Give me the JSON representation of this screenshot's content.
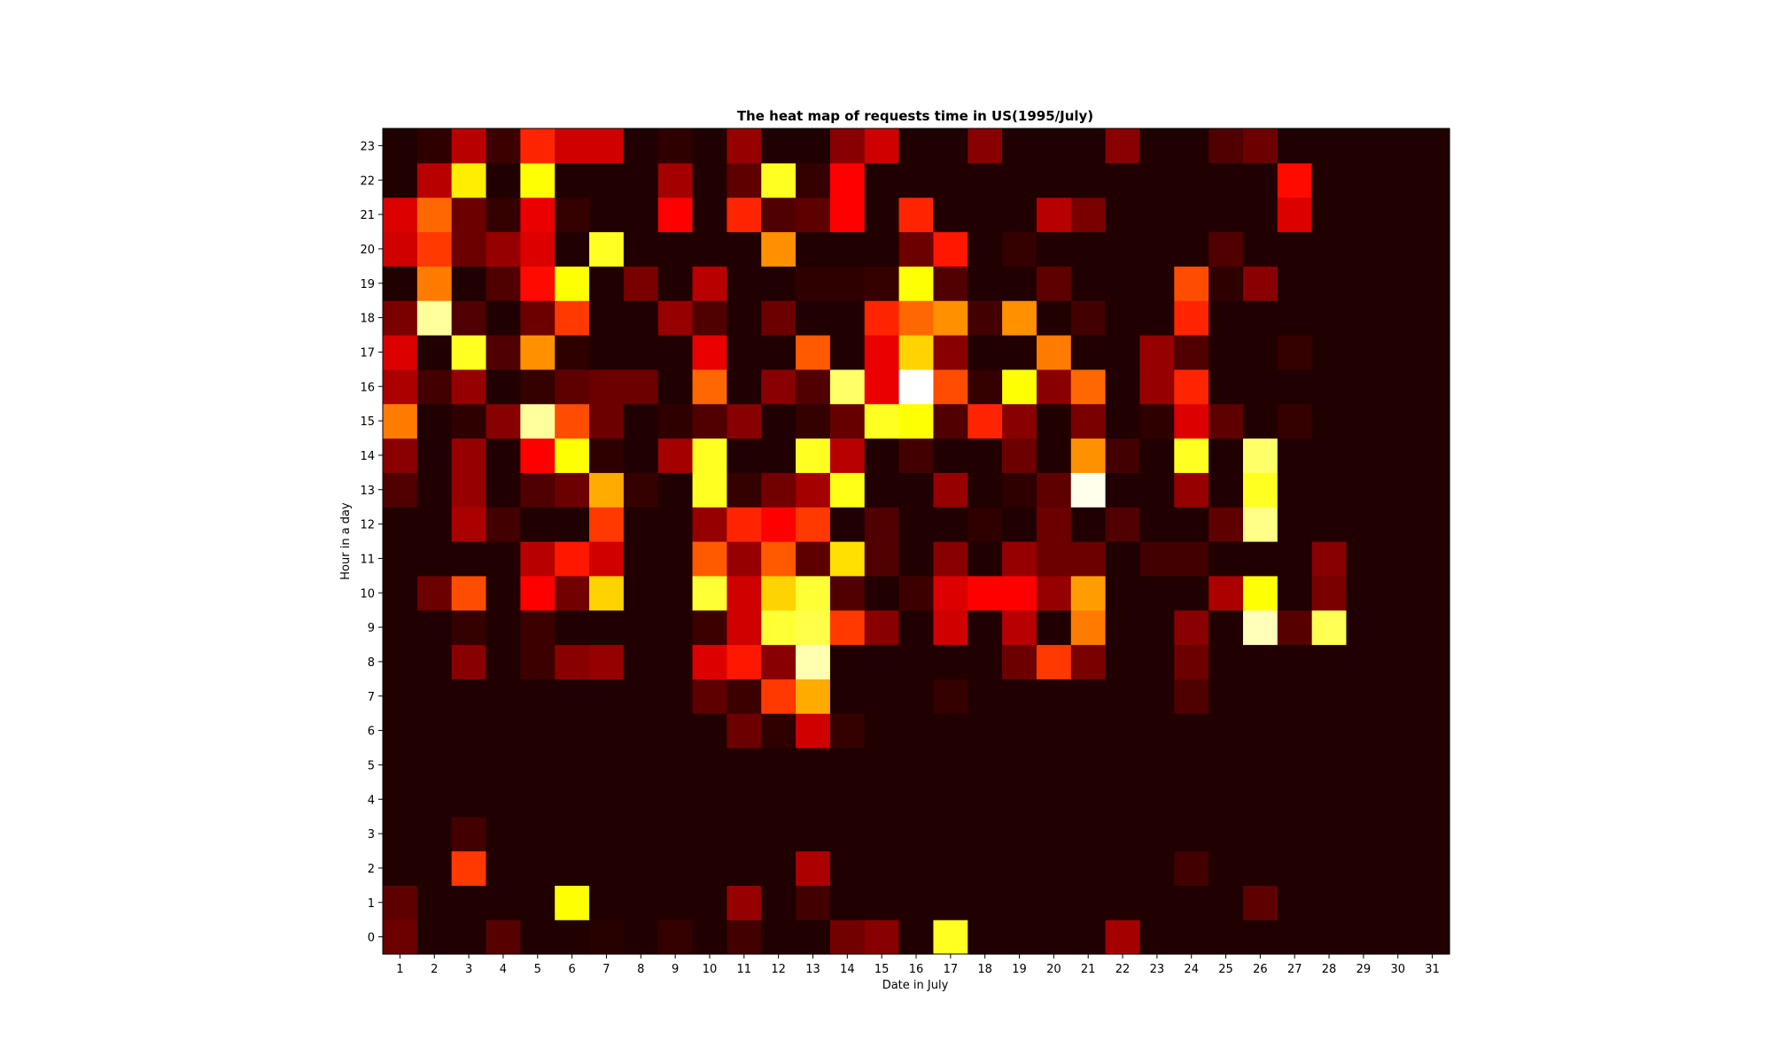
{
  "chart_data": {
    "type": "heatmap",
    "title": "The heat map of requests time in US(1995/July)",
    "xlabel": "Date in July",
    "ylabel": "Hour in a day",
    "x": [
      "1",
      "2",
      "3",
      "4",
      "5",
      "6",
      "7",
      "8",
      "9",
      "10",
      "11",
      "12",
      "13",
      "14",
      "15",
      "16",
      "17",
      "18",
      "19",
      "20",
      "21",
      "22",
      "23",
      "24",
      "25",
      "26",
      "27",
      "28",
      "29",
      "30",
      "31"
    ],
    "y": [
      "0",
      "1",
      "2",
      "3",
      "4",
      "5",
      "6",
      "7",
      "8",
      "9",
      "10",
      "11",
      "12",
      "13",
      "14",
      "15",
      "16",
      "17",
      "18",
      "19",
      "20",
      "21",
      "22",
      "23"
    ],
    "colormap": "hot",
    "value_range": [
      0,
      1
    ],
    "grid": false,
    "legend": "none",
    "values": [
      [
        0.14,
        0.03,
        0.03,
        0.11,
        0.03,
        0.03,
        0.04,
        0.03,
        0.06,
        0.03,
        0.08,
        0.03,
        0.03,
        0.15,
        0.18,
        0.03,
        0.78,
        0.03,
        0.03,
        0.03,
        0.03,
        0.22,
        0.03,
        0.03,
        0.03,
        0.03,
        0.03,
        0.03,
        0.03,
        0.03,
        0.03
      ],
      [
        0.12,
        0.03,
        0.03,
        0.03,
        0.03,
        0.75,
        0.03,
        0.03,
        0.03,
        0.03,
        0.2,
        0.03,
        0.08,
        0.03,
        0.03,
        0.03,
        0.03,
        0.03,
        0.03,
        0.03,
        0.03,
        0.03,
        0.03,
        0.03,
        0.03,
        0.12,
        0.03,
        0.03,
        0.03,
        0.03,
        0.03
      ],
      [
        0.03,
        0.03,
        0.45,
        0.03,
        0.03,
        0.03,
        0.03,
        0.03,
        0.03,
        0.03,
        0.03,
        0.03,
        0.23,
        0.03,
        0.03,
        0.03,
        0.03,
        0.03,
        0.03,
        0.03,
        0.03,
        0.03,
        0.03,
        0.08,
        0.03,
        0.03,
        0.03,
        0.03,
        0.03,
        0.03,
        0.03
      ],
      [
        0.03,
        0.03,
        0.08,
        0.03,
        0.03,
        0.03,
        0.03,
        0.03,
        0.03,
        0.03,
        0.03,
        0.03,
        0.03,
        0.03,
        0.03,
        0.03,
        0.03,
        0.03,
        0.03,
        0.03,
        0.03,
        0.03,
        0.03,
        0.03,
        0.03,
        0.03,
        0.03,
        0.03,
        0.03,
        0.03,
        0.03
      ],
      [
        0.03,
        0.03,
        0.03,
        0.03,
        0.03,
        0.03,
        0.03,
        0.03,
        0.03,
        0.03,
        0.03,
        0.03,
        0.03,
        0.03,
        0.03,
        0.03,
        0.03,
        0.03,
        0.03,
        0.03,
        0.03,
        0.03,
        0.03,
        0.03,
        0.03,
        0.03,
        0.03,
        0.03,
        0.03,
        0.03,
        0.03
      ],
      [
        0.03,
        0.03,
        0.03,
        0.03,
        0.03,
        0.03,
        0.03,
        0.03,
        0.03,
        0.03,
        0.03,
        0.03,
        0.03,
        0.03,
        0.03,
        0.03,
        0.03,
        0.03,
        0.03,
        0.03,
        0.03,
        0.03,
        0.03,
        0.03,
        0.03,
        0.03,
        0.03,
        0.03,
        0.03,
        0.03,
        0.03
      ],
      [
        0.03,
        0.03,
        0.03,
        0.03,
        0.03,
        0.03,
        0.03,
        0.03,
        0.03,
        0.03,
        0.14,
        0.05,
        0.28,
        0.06,
        0.03,
        0.03,
        0.03,
        0.03,
        0.03,
        0.03,
        0.03,
        0.03,
        0.03,
        0.03,
        0.03,
        0.03,
        0.03,
        0.03,
        0.03,
        0.03,
        0.03
      ],
      [
        0.03,
        0.03,
        0.03,
        0.03,
        0.03,
        0.03,
        0.03,
        0.03,
        0.03,
        0.12,
        0.07,
        0.45,
        0.62,
        0.03,
        0.03,
        0.03,
        0.06,
        0.03,
        0.03,
        0.03,
        0.03,
        0.03,
        0.03,
        0.1,
        0.03,
        0.03,
        0.03,
        0.03,
        0.03,
        0.03,
        0.03
      ],
      [
        0.03,
        0.03,
        0.18,
        0.03,
        0.07,
        0.18,
        0.2,
        0.03,
        0.03,
        0.3,
        0.4,
        0.18,
        0.92,
        0.03,
        0.03,
        0.03,
        0.03,
        0.03,
        0.14,
        0.45,
        0.16,
        0.03,
        0.03,
        0.14,
        0.03,
        0.03,
        0.03,
        0.03,
        0.03,
        0.03,
        0.03
      ],
      [
        0.03,
        0.03,
        0.06,
        0.03,
        0.07,
        0.03,
        0.03,
        0.03,
        0.03,
        0.07,
        0.28,
        0.8,
        0.82,
        0.45,
        0.18,
        0.03,
        0.28,
        0.03,
        0.25,
        0.03,
        0.55,
        0.03,
        0.03,
        0.18,
        0.03,
        0.93,
        0.11,
        0.83,
        0.03,
        0.03,
        0.03
      ],
      [
        0.03,
        0.14,
        0.48,
        0.03,
        0.35,
        0.15,
        0.68,
        0.03,
        0.03,
        0.8,
        0.28,
        0.68,
        0.8,
        0.1,
        0.03,
        0.07,
        0.3,
        0.35,
        0.35,
        0.2,
        0.6,
        0.03,
        0.03,
        0.03,
        0.23,
        0.75,
        0.03,
        0.16,
        0.03,
        0.03,
        0.03
      ],
      [
        0.03,
        0.03,
        0.03,
        0.03,
        0.25,
        0.4,
        0.28,
        0.03,
        0.03,
        0.5,
        0.2,
        0.5,
        0.12,
        0.7,
        0.1,
        0.03,
        0.18,
        0.03,
        0.2,
        0.14,
        0.14,
        0.03,
        0.08,
        0.08,
        0.03,
        0.03,
        0.03,
        0.18,
        0.03,
        0.03,
        0.03
      ],
      [
        0.03,
        0.03,
        0.23,
        0.08,
        0.03,
        0.03,
        0.45,
        0.03,
        0.03,
        0.2,
        0.42,
        0.35,
        0.45,
        0.03,
        0.1,
        0.03,
        0.03,
        0.05,
        0.03,
        0.14,
        0.03,
        0.1,
        0.03,
        0.03,
        0.12,
        0.88,
        0.03,
        0.03,
        0.03,
        0.03,
        0.03
      ],
      [
        0.1,
        0.03,
        0.2,
        0.03,
        0.1,
        0.14,
        0.62,
        0.06,
        0.03,
        0.78,
        0.06,
        0.15,
        0.22,
        0.77,
        0.03,
        0.03,
        0.2,
        0.03,
        0.05,
        0.12,
        0.98,
        0.03,
        0.03,
        0.2,
        0.03,
        0.78,
        0.03,
        0.03,
        0.03,
        0.03,
        0.03
      ],
      [
        0.18,
        0.03,
        0.2,
        0.03,
        0.35,
        0.75,
        0.05,
        0.03,
        0.22,
        0.78,
        0.03,
        0.03,
        0.78,
        0.25,
        0.03,
        0.08,
        0.03,
        0.03,
        0.14,
        0.03,
        0.58,
        0.08,
        0.03,
        0.78,
        0.03,
        0.85,
        0.03,
        0.03,
        0.03,
        0.03,
        0.03
      ],
      [
        0.55,
        0.03,
        0.05,
        0.18,
        0.9,
        0.48,
        0.14,
        0.03,
        0.05,
        0.1,
        0.18,
        0.03,
        0.06,
        0.13,
        0.78,
        0.75,
        0.1,
        0.42,
        0.18,
        0.03,
        0.16,
        0.03,
        0.05,
        0.3,
        0.12,
        0.03,
        0.06,
        0.03,
        0.03,
        0.03,
        0.03
      ],
      [
        0.23,
        0.08,
        0.2,
        0.03,
        0.06,
        0.12,
        0.14,
        0.14,
        0.03,
        0.52,
        0.03,
        0.18,
        0.1,
        0.85,
        0.32,
        1.0,
        0.48,
        0.06,
        0.75,
        0.18,
        0.52,
        0.03,
        0.2,
        0.42,
        0.03,
        0.03,
        0.03,
        0.03,
        0.03,
        0.03,
        0.03
      ],
      [
        0.3,
        0.03,
        0.78,
        0.1,
        0.58,
        0.05,
        0.03,
        0.03,
        0.03,
        0.32,
        0.03,
        0.03,
        0.5,
        0.03,
        0.32,
        0.68,
        0.18,
        0.03,
        0.03,
        0.55,
        0.03,
        0.03,
        0.2,
        0.1,
        0.03,
        0.03,
        0.06,
        0.03,
        0.03,
        0.03,
        0.03
      ],
      [
        0.16,
        0.9,
        0.1,
        0.03,
        0.14,
        0.45,
        0.03,
        0.03,
        0.2,
        0.1,
        0.03,
        0.14,
        0.03,
        0.03,
        0.42,
        0.52,
        0.58,
        0.08,
        0.58,
        0.03,
        0.08,
        0.03,
        0.03,
        0.42,
        0.03,
        0.03,
        0.03,
        0.03,
        0.03,
        0.03,
        0.03
      ],
      [
        0.03,
        0.55,
        0.03,
        0.1,
        0.38,
        0.75,
        0.03,
        0.16,
        0.03,
        0.25,
        0.03,
        0.03,
        0.05,
        0.05,
        0.06,
        0.75,
        0.1,
        0.03,
        0.03,
        0.12,
        0.03,
        0.03,
        0.03,
        0.48,
        0.05,
        0.18,
        0.03,
        0.03,
        0.03,
        0.03,
        0.03
      ],
      [
        0.28,
        0.45,
        0.14,
        0.2,
        0.3,
        0.03,
        0.78,
        0.03,
        0.03,
        0.03,
        0.03,
        0.58,
        0.03,
        0.03,
        0.03,
        0.14,
        0.4,
        0.03,
        0.06,
        0.03,
        0.03,
        0.03,
        0.03,
        0.03,
        0.1,
        0.03,
        0.03,
        0.03,
        0.03,
        0.03,
        0.03
      ],
      [
        0.3,
        0.52,
        0.14,
        0.06,
        0.32,
        0.06,
        0.03,
        0.03,
        0.35,
        0.03,
        0.42,
        0.1,
        0.12,
        0.35,
        0.03,
        0.42,
        0.03,
        0.03,
        0.03,
        0.25,
        0.16,
        0.03,
        0.03,
        0.03,
        0.03,
        0.03,
        0.3,
        0.03,
        0.03,
        0.03,
        0.03
      ],
      [
        0.03,
        0.25,
        0.72,
        0.03,
        0.75,
        0.03,
        0.03,
        0.03,
        0.22,
        0.03,
        0.12,
        0.78,
        0.06,
        0.35,
        0.03,
        0.03,
        0.03,
        0.03,
        0.03,
        0.03,
        0.03,
        0.03,
        0.03,
        0.03,
        0.03,
        0.03,
        0.38,
        0.03,
        0.03,
        0.03,
        0.03
      ],
      [
        0.03,
        0.05,
        0.25,
        0.07,
        0.42,
        0.28,
        0.28,
        0.03,
        0.05,
        0.03,
        0.2,
        0.03,
        0.03,
        0.18,
        0.28,
        0.03,
        0.03,
        0.18,
        0.03,
        0.03,
        0.03,
        0.18,
        0.03,
        0.03,
        0.1,
        0.14,
        0.03,
        0.03,
        0.03,
        0.03,
        0.03
      ]
    ]
  }
}
